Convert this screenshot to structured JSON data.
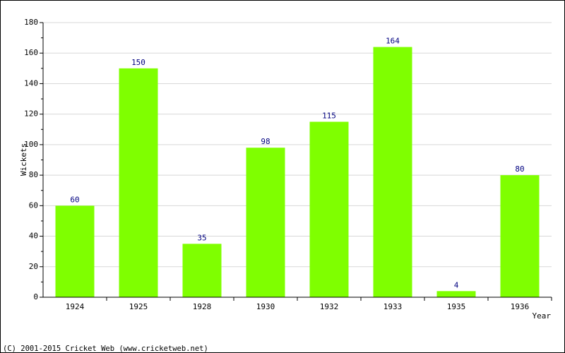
{
  "chart_data": {
    "type": "bar",
    "categories": [
      "1924",
      "1925",
      "1928",
      "1930",
      "1932",
      "1933",
      "1935",
      "1936"
    ],
    "values": [
      60,
      150,
      35,
      98,
      115,
      164,
      4,
      80
    ],
    "data_labels": [
      "60",
      "150",
      "35",
      "98",
      "115",
      "164",
      "4",
      "80"
    ],
    "title": "",
    "xlabel": "Year",
    "ylabel": "Wickets",
    "ylim": [
      0,
      180
    ],
    "yticks": [
      0,
      20,
      40,
      60,
      80,
      100,
      120,
      140,
      160,
      180
    ],
    "grid": true,
    "legend": "none"
  },
  "colors": {
    "bar": "#7fff00",
    "data_label": "#000080",
    "grid": "#d8d8d8",
    "axis": "#000000",
    "text": "#000000"
  },
  "footer": {
    "copyright": "(C) 2001-2015 Cricket Web (www.cricketweb.net)"
  }
}
